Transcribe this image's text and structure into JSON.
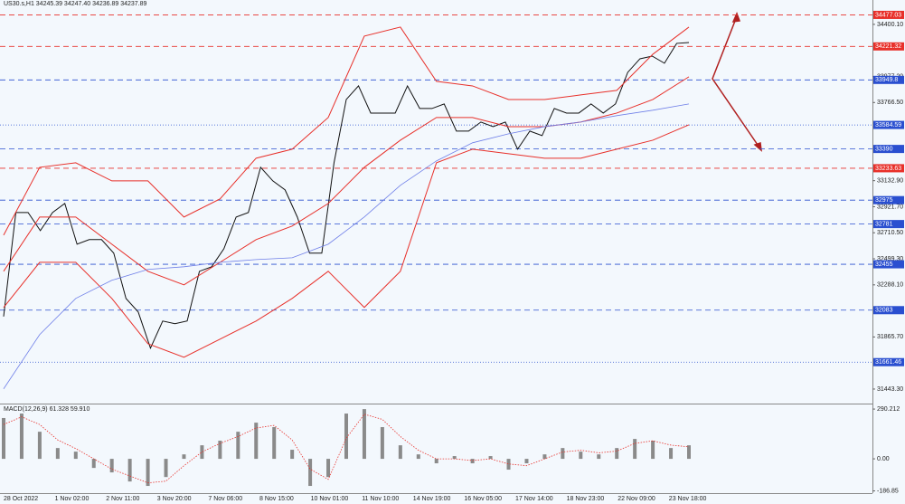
{
  "chart_data": [
    {
      "type": "line",
      "title": "US30.s,H1  34245.39 34247.40 34236.89 34237.89",
      "x_labels": [
        "28 Oct 2022",
        "1 Nov 02:00",
        "2 Nov 11:00",
        "3 Nov 20:00",
        "7 Nov 06:00",
        "8 Nov 15:00",
        "10 Nov 01:00",
        "11 Nov 10:00",
        "14 Nov 19:00",
        "16 Nov 05:00",
        "17 Nov 14:00",
        "18 Nov 23:00",
        "22 Nov 09:00",
        "23 Nov 18:00"
      ],
      "ylim": [
        31333,
        34539
      ],
      "yticks": [
        {
          "value": 34400.1,
          "label": "34400.10"
        },
        {
          "value": 33977.2,
          "label": "33977.20"
        },
        {
          "value": 33766.5,
          "label": "33766.50"
        },
        {
          "value": 33132.9,
          "label": "33132.90"
        },
        {
          "value": 32921.7,
          "label": "32921.70"
        },
        {
          "value": 32710.5,
          "label": "32710.50"
        },
        {
          "value": 32499.3,
          "label": "32499.30"
        },
        {
          "value": 32288.1,
          "label": "32288.10"
        },
        {
          "value": 31865.7,
          "label": "31865.70"
        },
        {
          "value": 31443.3,
          "label": "31443.30"
        }
      ],
      "levels": [
        {
          "value": 34477.03,
          "color": "#e8302a",
          "style": "dashed"
        },
        {
          "value": 34221.32,
          "color": "#e8302a",
          "style": "dashed"
        },
        {
          "value": 33949.8,
          "color": "#2a4fd0",
          "style": "dashed"
        },
        {
          "value": 33584.59,
          "color": "#2a4fd0",
          "style": "dotted"
        },
        {
          "value": 33390,
          "color": "#2a4fd0",
          "style": "dashed"
        },
        {
          "value": 33233.63,
          "color": "#e8302a",
          "style": "dashed"
        },
        {
          "value": 32975,
          "color": "#2a4fd0",
          "style": "dashed"
        },
        {
          "value": 32781,
          "color": "#2a4fd0",
          "style": "dashed"
        },
        {
          "value": 32455,
          "color": "#2a4fd0",
          "style": "dashed"
        },
        {
          "value": 32083,
          "color": "#2a4fd0",
          "style": "dashed"
        },
        {
          "value": 31661.46,
          "color": "#2a4fd0",
          "style": "dotted"
        }
      ],
      "series": [
        {
          "color": "#111111",
          "width": 1,
          "values": [
            32031,
            32875,
            32875,
            32728,
            32875,
            32948,
            32618,
            32655,
            32655,
            32545,
            32178,
            32068,
            31775,
            31995,
            31973,
            31995,
            32398,
            32435,
            32581,
            32838,
            32875,
            33241,
            33131,
            33058,
            32838,
            32545,
            32545,
            33278,
            33791,
            33901,
            33681,
            33681,
            33681,
            33901,
            33718,
            33718,
            33755,
            33535,
            33535,
            33608,
            33571,
            33608,
            33388,
            33535,
            33498,
            33718,
            33681,
            33681,
            33755,
            33681,
            33755,
            34011,
            34121,
            34143,
            34085,
            34246,
            34253
          ]
        },
        {
          "color": "#e8302a",
          "width": 1,
          "values": [
            32691,
            33241,
            33278,
            33131,
            33131,
            32838,
            32985,
            33315,
            33388,
            33645,
            34305,
            34378,
            33938,
            33901,
            33791,
            33791,
            33828,
            33865,
            34158,
            34378
          ]
        },
        {
          "color": "#e8302a",
          "width": 1,
          "values": [
            32398,
            32838,
            32838,
            32618,
            32398,
            32288,
            32471,
            32655,
            32765,
            32948,
            33241,
            33461,
            33645,
            33645,
            33571,
            33571,
            33608,
            33681,
            33791,
            33975
          ]
        },
        {
          "color": "#e8302a",
          "width": 1,
          "values": [
            32105,
            32471,
            32471,
            32178,
            31811,
            31701,
            31848,
            31995,
            32178,
            32398,
            32105,
            32398,
            33278,
            33388,
            33351,
            33315,
            33315,
            33388,
            33461,
            33586
          ]
        },
        {
          "color": "#6f7fe8",
          "width": 0.8,
          "values": [
            31445,
            31885,
            32178,
            32325,
            32413,
            32435,
            32471,
            32493,
            32508,
            32618,
            32838,
            33095,
            33293,
            33440,
            33513,
            33571,
            33608,
            33660,
            33704,
            33755
          ]
        }
      ]
    },
    {
      "type": "bar",
      "title": "MACD(12,26,9) 61.328 59.910",
      "ylim": [
        -200,
        317
      ],
      "yticks": [
        290.212,
        {
          "value": 0,
          "label": "0.00"
        },
        -186.85
      ],
      "series": [
        {
          "type": "bar",
          "color": "#8a8a8a",
          "values": [
            238,
            264,
            158,
            63,
            42,
            -53,
            -79,
            -132,
            -158,
            -106,
            26,
            79,
            106,
            158,
            211,
            185,
            53,
            -158,
            -106,
            264,
            290,
            185,
            79,
            26,
            -26,
            16,
            -26,
            16,
            -63,
            -26,
            26,
            63,
            42,
            26,
            63,
            116,
            106,
            63,
            79
          ]
        },
        {
          "type": "line",
          "color": "#e8302a",
          "values": [
            200,
            245,
            200,
            110,
            60,
            0,
            -60,
            -100,
            -140,
            -130,
            -40,
            40,
            90,
            130,
            180,
            195,
            110,
            -60,
            -120,
            120,
            260,
            230,
            130,
            50,
            0,
            0,
            -10,
            0,
            -30,
            -40,
            0,
            40,
            50,
            35,
            45,
            90,
            105,
            80,
            70
          ]
        }
      ]
    }
  ]
}
